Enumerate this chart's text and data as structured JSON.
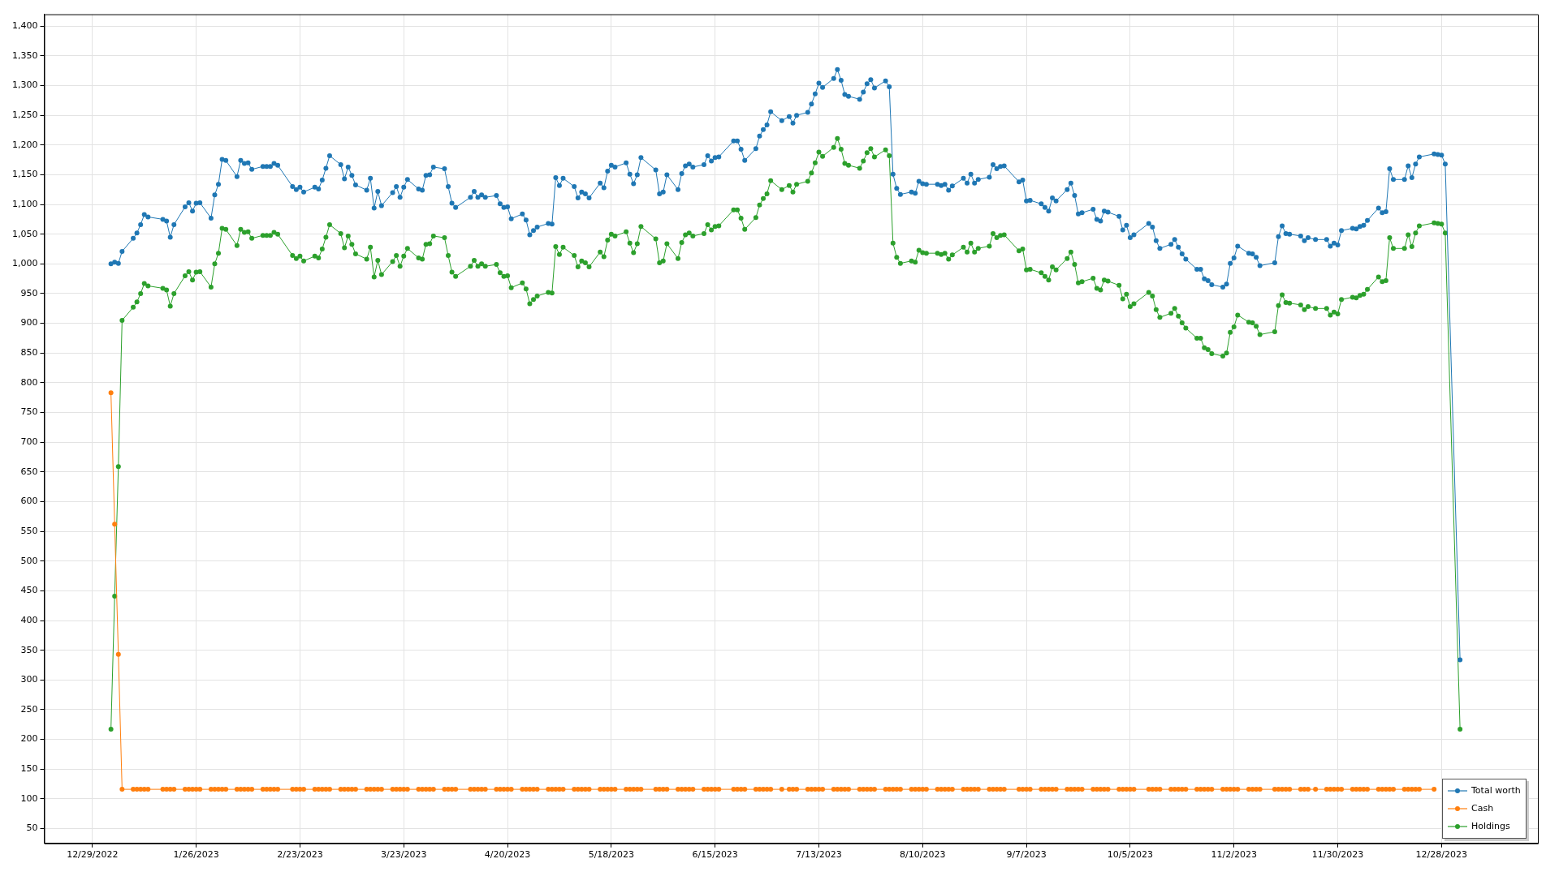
{
  "chart_data": {
    "type": "line",
    "x": [
      "2023-01-03",
      "2023-01-04",
      "2023-01-05",
      "2023-01-06",
      "2023-01-09",
      "2023-01-10",
      "2023-01-11",
      "2023-01-12",
      "2023-01-13",
      "2023-01-17",
      "2023-01-18",
      "2023-01-19",
      "2023-01-20",
      "2023-01-23",
      "2023-01-24",
      "2023-01-25",
      "2023-01-26",
      "2023-01-27",
      "2023-01-30",
      "2023-01-31",
      "2023-02-01",
      "2023-02-02",
      "2023-02-03",
      "2023-02-06",
      "2023-02-07",
      "2023-02-08",
      "2023-02-09",
      "2023-02-10",
      "2023-02-13",
      "2023-02-14",
      "2023-02-15",
      "2023-02-16",
      "2023-02-17",
      "2023-02-21",
      "2023-02-22",
      "2023-02-23",
      "2023-02-24",
      "2023-02-27",
      "2023-02-28",
      "2023-03-01",
      "2023-03-02",
      "2023-03-03",
      "2023-03-06",
      "2023-03-07",
      "2023-03-08",
      "2023-03-09",
      "2023-03-10",
      "2023-03-13",
      "2023-03-14",
      "2023-03-15",
      "2023-03-16",
      "2023-03-17",
      "2023-03-20",
      "2023-03-21",
      "2023-03-22",
      "2023-03-23",
      "2023-03-24",
      "2023-03-27",
      "2023-03-28",
      "2023-03-29",
      "2023-03-30",
      "2023-03-31",
      "2023-04-03",
      "2023-04-04",
      "2023-04-05",
      "2023-04-06",
      "2023-04-10",
      "2023-04-11",
      "2023-04-12",
      "2023-04-13",
      "2023-04-14",
      "2023-04-17",
      "2023-04-18",
      "2023-04-19",
      "2023-04-20",
      "2023-04-21",
      "2023-04-24",
      "2023-04-25",
      "2023-04-26",
      "2023-04-27",
      "2023-04-28",
      "2023-05-01",
      "2023-05-02",
      "2023-05-03",
      "2023-05-04",
      "2023-05-05",
      "2023-05-08",
      "2023-05-09",
      "2023-05-10",
      "2023-05-11",
      "2023-05-12",
      "2023-05-15",
      "2023-05-16",
      "2023-05-17",
      "2023-05-18",
      "2023-05-19",
      "2023-05-22",
      "2023-05-23",
      "2023-05-24",
      "2023-05-25",
      "2023-05-26",
      "2023-05-30",
      "2023-05-31",
      "2023-06-01",
      "2023-06-02",
      "2023-06-05",
      "2023-06-06",
      "2023-06-07",
      "2023-06-08",
      "2023-06-09",
      "2023-06-12",
      "2023-06-13",
      "2023-06-14",
      "2023-06-15",
      "2023-06-16",
      "2023-06-20",
      "2023-06-21",
      "2023-06-22",
      "2023-06-23",
      "2023-06-26",
      "2023-06-27",
      "2023-06-28",
      "2023-06-29",
      "2023-06-30",
      "2023-07-03",
      "2023-07-05",
      "2023-07-06",
      "2023-07-07",
      "2023-07-10",
      "2023-07-11",
      "2023-07-12",
      "2023-07-13",
      "2023-07-14",
      "2023-07-17",
      "2023-07-18",
      "2023-07-19",
      "2023-07-20",
      "2023-07-21",
      "2023-07-24",
      "2023-07-25",
      "2023-07-26",
      "2023-07-27",
      "2023-07-28",
      "2023-07-31",
      "2023-08-01",
      "2023-08-02",
      "2023-08-03",
      "2023-08-04",
      "2023-08-07",
      "2023-08-08",
      "2023-08-09",
      "2023-08-10",
      "2023-08-11",
      "2023-08-14",
      "2023-08-15",
      "2023-08-16",
      "2023-08-17",
      "2023-08-18",
      "2023-08-21",
      "2023-08-22",
      "2023-08-23",
      "2023-08-24",
      "2023-08-25",
      "2023-08-28",
      "2023-08-29",
      "2023-08-30",
      "2023-08-31",
      "2023-09-01",
      "2023-09-05",
      "2023-09-06",
      "2023-09-07",
      "2023-09-08",
      "2023-09-11",
      "2023-09-12",
      "2023-09-13",
      "2023-09-14",
      "2023-09-15",
      "2023-09-18",
      "2023-09-19",
      "2023-09-20",
      "2023-09-21",
      "2023-09-22",
      "2023-09-25",
      "2023-09-26",
      "2023-09-27",
      "2023-09-28",
      "2023-09-29",
      "2023-10-02",
      "2023-10-03",
      "2023-10-04",
      "2023-10-05",
      "2023-10-06",
      "2023-10-10",
      "2023-10-11",
      "2023-10-12",
      "2023-10-13",
      "2023-10-16",
      "2023-10-17",
      "2023-10-18",
      "2023-10-19",
      "2023-10-20",
      "2023-10-23",
      "2023-10-24",
      "2023-10-25",
      "2023-10-26",
      "2023-10-27",
      "2023-10-30",
      "2023-10-31",
      "2023-11-01",
      "2023-11-02",
      "2023-11-03",
      "2023-11-06",
      "2023-11-07",
      "2023-11-08",
      "2023-11-09",
      "2023-11-13",
      "2023-11-14",
      "2023-11-15",
      "2023-11-16",
      "2023-11-17",
      "2023-11-20",
      "2023-11-21",
      "2023-11-22",
      "2023-11-24",
      "2023-11-27",
      "2023-11-28",
      "2023-11-29",
      "2023-11-30",
      "2023-12-01",
      "2023-12-04",
      "2023-12-05",
      "2023-12-06",
      "2023-12-07",
      "2023-12-08",
      "2023-12-11",
      "2023-12-12",
      "2023-12-13",
      "2023-12-14",
      "2023-12-15",
      "2023-12-18",
      "2023-12-19",
      "2023-12-20",
      "2023-12-21",
      "2023-12-22",
      "2023-12-26",
      "2023-12-27",
      "2023-12-28",
      "2023-12-29",
      "2024-01-02"
    ],
    "series": [
      {
        "name": "Total worth",
        "color": "#1f77b4",
        "values": [
          1000,
          1003,
          1001,
          1021,
          1043,
          1052,
          1066,
          1083,
          1079,
          1075,
          1072,
          1045,
          1066,
          1096,
          1103,
          1089,
          1102,
          1103,
          1077,
          1116,
          1134,
          1176,
          1174,
          1147,
          1174,
          1169,
          1170,
          1159,
          1164,
          1164,
          1164,
          1169,
          1166,
          1130,
          1125,
          1129,
          1121,
          1129,
          1126,
          1141,
          1161,
          1182,
          1167,
          1143,
          1163,
          1149,
          1133,
          1124,
          1144,
          1094,
          1122,
          1098,
          1120,
          1130,
          1112,
          1129,
          1142,
          1126,
          1124,
          1149,
          1150,
          1163,
          1160,
          1130,
          1102,
          1095,
          1112,
          1122,
          1112,
          1116,
          1112,
          1115,
          1101,
          1095,
          1096,
          1076,
          1084,
          1074,
          1049,
          1056,
          1062,
          1068,
          1067,
          1145,
          1132,
          1144,
          1130,
          1111,
          1121,
          1118,
          1111,
          1136,
          1128,
          1156,
          1166,
          1163,
          1170,
          1151,
          1135,
          1150,
          1179,
          1158,
          1118,
          1121,
          1150,
          1125,
          1152,
          1165,
          1168,
          1163,
          1167,
          1182,
          1173,
          1179,
          1180,
          1207,
          1207,
          1193,
          1174,
          1194,
          1215,
          1226,
          1234,
          1256,
          1241,
          1248,
          1237,
          1250,
          1255,
          1269,
          1286,
          1304,
          1297,
          1312,
          1327,
          1309,
          1285,
          1282,
          1277,
          1289,
          1303,
          1310,
          1296,
          1308,
          1298,
          1151,
          1127,
          1117,
          1121,
          1119,
          1139,
          1135,
          1134,
          1134,
          1132,
          1134,
          1124,
          1131,
          1144,
          1136,
          1151,
          1136,
          1142,
          1146,
          1167,
          1160,
          1164,
          1165,
          1138,
          1141,
          1106,
          1107,
          1101,
          1095,
          1089,
          1111,
          1106,
          1125,
          1136,
          1115,
          1084,
          1086,
          1092,
          1075,
          1072,
          1089,
          1087,
          1080,
          1057,
          1065,
          1044,
          1049,
          1068,
          1062,
          1039,
          1026,
          1033,
          1041,
          1028,
          1017,
          1008,
          991,
          991,
          975,
          972,
          965,
          961,
          966,
          1001,
          1010,
          1030,
          1018,
          1017,
          1011,
          997,
          1002,
          1046,
          1064,
          1051,
          1050,
          1047,
          1039,
          1044,
          1041,
          1041,
          1030,
          1035,
          1032,
          1056,
          1060,
          1059,
          1063,
          1065,
          1073,
          1094,
          1086,
          1088,
          1160,
          1142,
          1142,
          1165,
          1145,
          1168,
          1180,
          1185,
          1184,
          1183,
          1168,
          334
        ]
      },
      {
        "name": "Cash",
        "color": "#ff7f0e",
        "values": [
          783,
          562,
          343,
          116,
          116,
          116,
          116,
          116,
          116,
          116,
          116,
          116,
          116,
          116,
          116,
          116,
          116,
          116,
          116,
          116,
          116,
          116,
          116,
          116,
          116,
          116,
          116,
          116,
          116,
          116,
          116,
          116,
          116,
          116,
          116,
          116,
          116,
          116,
          116,
          116,
          116,
          116,
          116,
          116,
          116,
          116,
          116,
          116,
          116,
          116,
          116,
          116,
          116,
          116,
          116,
          116,
          116,
          116,
          116,
          116,
          116,
          116,
          116,
          116,
          116,
          116,
          116,
          116,
          116,
          116,
          116,
          116,
          116,
          116,
          116,
          116,
          116,
          116,
          116,
          116,
          116,
          116,
          116,
          116,
          116,
          116,
          116,
          116,
          116,
          116,
          116,
          116,
          116,
          116,
          116,
          116,
          116,
          116,
          116,
          116,
          116,
          116,
          116,
          116,
          116,
          116,
          116,
          116,
          116,
          116,
          116,
          116,
          116,
          116,
          116,
          116,
          116,
          116,
          116,
          116,
          116,
          116,
          116,
          116,
          116,
          116,
          116,
          116,
          116,
          116,
          116,
          116,
          116,
          116,
          116,
          116,
          116,
          116,
          116,
          116,
          116,
          116,
          116,
          116,
          116,
          116,
          116,
          116,
          116,
          116,
          116,
          116,
          116,
          116,
          116,
          116,
          116,
          116,
          116,
          116,
          116,
          116,
          116,
          116,
          116,
          116,
          116,
          116,
          116,
          116,
          116,
          116,
          116,
          116,
          116,
          116,
          116,
          116,
          116,
          116,
          116,
          116,
          116,
          116,
          116,
          116,
          116,
          116,
          116,
          116,
          116,
          116,
          116,
          116,
          116,
          116,
          116,
          116,
          116,
          116,
          116,
          116,
          116,
          116,
          116,
          116,
          116,
          116,
          116,
          116,
          116,
          116,
          116,
          116,
          116,
          116,
          116,
          116,
          116,
          116,
          116,
          116,
          116,
          116,
          116,
          116,
          116,
          116,
          116,
          116,
          116,
          116,
          116,
          116,
          116,
          116,
          116,
          116,
          116,
          116,
          116,
          116,
          116,
          116,
          116,
          null,
          null,
          null,
          null
        ]
      },
      {
        "name": "Holdings",
        "color": "#2ca02c",
        "values": [
          217,
          441,
          659,
          905,
          927,
          936,
          950,
          967,
          963,
          959,
          956,
          929,
          950,
          980,
          987,
          973,
          986,
          987,
          961,
          1000,
          1018,
          1060,
          1058,
          1031,
          1058,
          1053,
          1054,
          1043,
          1048,
          1048,
          1048,
          1053,
          1050,
          1014,
          1009,
          1013,
          1005,
          1013,
          1010,
          1025,
          1045,
          1066,
          1051,
          1027,
          1047,
          1033,
          1017,
          1008,
          1028,
          978,
          1006,
          982,
          1004,
          1014,
          996,
          1013,
          1026,
          1010,
          1008,
          1033,
          1034,
          1047,
          1044,
          1014,
          986,
          979,
          996,
          1006,
          996,
          1000,
          996,
          999,
          985,
          979,
          980,
          960,
          968,
          958,
          933,
          940,
          946,
          952,
          951,
          1029,
          1016,
          1028,
          1014,
          995,
          1005,
          1002,
          995,
          1020,
          1012,
          1040,
          1050,
          1047,
          1054,
          1035,
          1019,
          1034,
          1063,
          1042,
          1002,
          1005,
          1034,
          1009,
          1036,
          1049,
          1052,
          1047,
          1051,
          1066,
          1057,
          1063,
          1064,
          1091,
          1091,
          1077,
          1058,
          1078,
          1099,
          1110,
          1118,
          1140,
          1125,
          1132,
          1121,
          1134,
          1139,
          1153,
          1170,
          1188,
          1181,
          1196,
          1211,
          1193,
          1169,
          1166,
          1161,
          1173,
          1187,
          1194,
          1180,
          1192,
          1182,
          1035,
          1011,
          1001,
          1005,
          1003,
          1023,
          1019,
          1018,
          1018,
          1016,
          1018,
          1008,
          1015,
          1028,
          1020,
          1035,
          1020,
          1026,
          1030,
          1051,
          1044,
          1048,
          1049,
          1022,
          1025,
          990,
          991,
          985,
          979,
          973,
          995,
          990,
          1009,
          1020,
          999,
          968,
          970,
          976,
          959,
          956,
          973,
          971,
          964,
          941,
          949,
          928,
          933,
          952,
          946,
          923,
          910,
          917,
          925,
          912,
          901,
          892,
          875,
          875,
          859,
          856,
          849,
          845,
          850,
          885,
          894,
          914,
          902,
          901,
          895,
          881,
          886,
          930,
          948,
          935,
          934,
          931,
          923,
          928,
          925,
          925,
          914,
          919,
          916,
          940,
          944,
          943,
          947,
          949,
          957,
          978,
          970,
          972,
          1044,
          1026,
          1026,
          1049,
          1029,
          1052,
          1064,
          1069,
          1068,
          1067,
          1052,
          217
        ]
      }
    ],
    "xlim": [
      "2022-12-16",
      "2024-01-23"
    ],
    "xticks": [
      {
        "value": "2022-12-29",
        "label": "12/29/2022"
      },
      {
        "value": "2023-01-26",
        "label": "1/26/2023"
      },
      {
        "value": "2023-02-23",
        "label": "2/23/2023"
      },
      {
        "value": "2023-03-23",
        "label": "3/23/2023"
      },
      {
        "value": "2023-04-20",
        "label": "4/20/2023"
      },
      {
        "value": "2023-05-18",
        "label": "5/18/2023"
      },
      {
        "value": "2023-06-15",
        "label": "6/15/2023"
      },
      {
        "value": "2023-07-13",
        "label": "7/13/2023"
      },
      {
        "value": "2023-08-10",
        "label": "8/10/2023"
      },
      {
        "value": "2023-09-07",
        "label": "9/7/2023"
      },
      {
        "value": "2023-10-05",
        "label": "10/5/2023"
      },
      {
        "value": "2023-11-02",
        "label": "11/2/2023"
      },
      {
        "value": "2023-11-30",
        "label": "11/30/2023"
      },
      {
        "value": "2023-12-28",
        "label": "12/28/2023"
      }
    ],
    "ylim": [
      25,
      1420
    ],
    "yticks": [
      50,
      100,
      150,
      200,
      250,
      300,
      350,
      400,
      450,
      500,
      550,
      600,
      650,
      700,
      750,
      800,
      850,
      900,
      950,
      {
        "value": 1000,
        "label": "1,000"
      },
      {
        "value": 1050,
        "label": "1,050"
      },
      {
        "value": 1100,
        "label": "1,100"
      },
      {
        "value": 1150,
        "label": "1,150"
      },
      {
        "value": 1200,
        "label": "1,200"
      },
      {
        "value": 1250,
        "label": "1,250"
      },
      {
        "value": 1300,
        "label": "1,300"
      },
      {
        "value": 1350,
        "label": "1,350"
      },
      {
        "value": 1400,
        "label": "1,400"
      }
    ],
    "grid": true,
    "legend": "bottom right",
    "marker": "circle",
    "line_style": "solid"
  }
}
